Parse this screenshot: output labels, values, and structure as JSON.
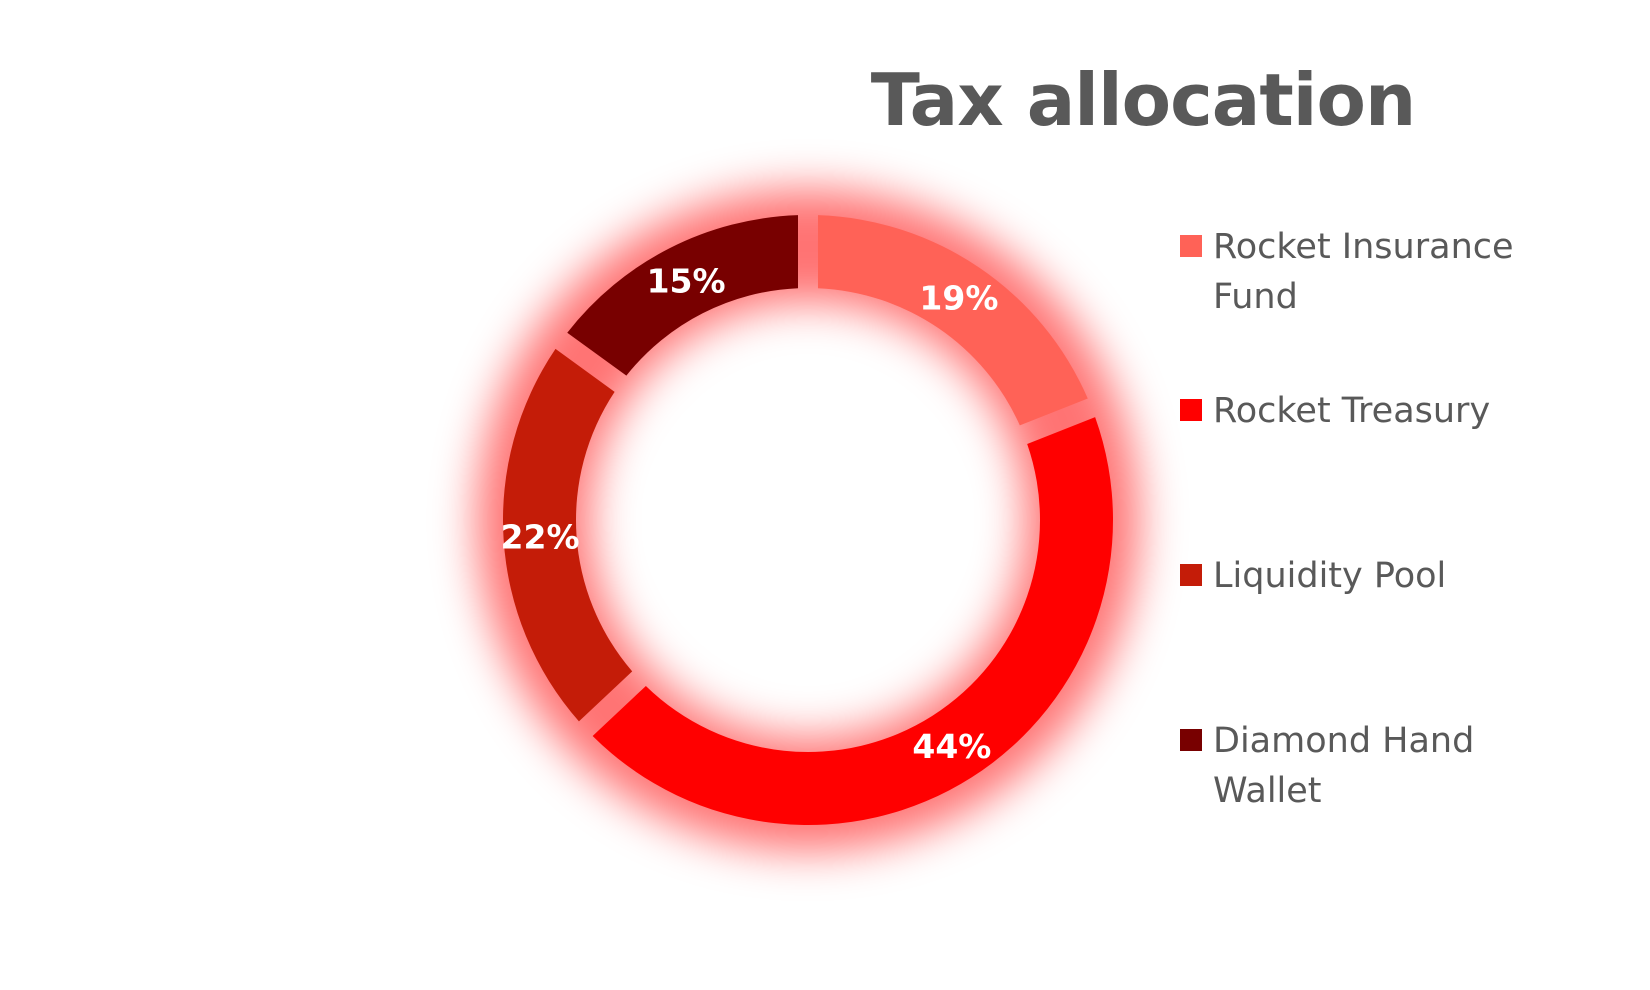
{
  "chart_data": {
    "type": "pie",
    "title": "Tax allocation",
    "categories": [
      "Rocket Insurance Fund",
      "Rocket Treasury",
      "Liquidity Pool",
      "Diamond Hand Wallet"
    ],
    "values": [
      19,
      44,
      22,
      15
    ],
    "labels": [
      "19%",
      "44%",
      "22%",
      "15%"
    ],
    "colors": [
      "#FF6257",
      "#FF0000",
      "#C41C08",
      "#780000"
    ],
    "donut": true,
    "legend_position": "right",
    "glow_color": "#FF0000"
  }
}
